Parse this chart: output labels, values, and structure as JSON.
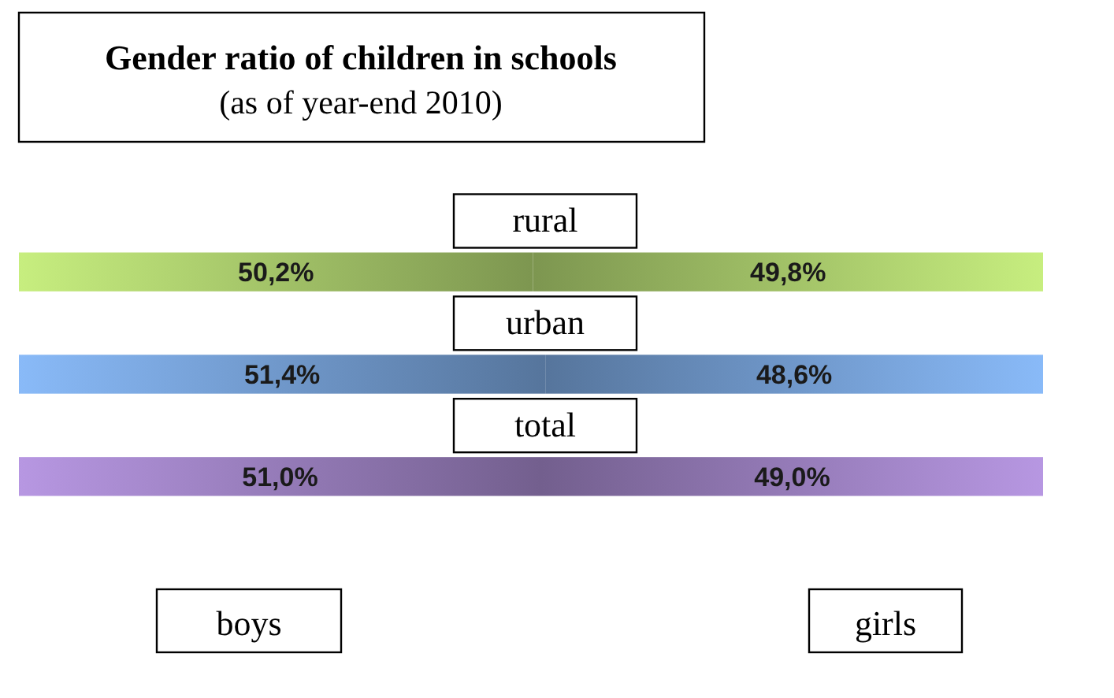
{
  "chart_data": {
    "type": "bar",
    "orientation": "horizontal",
    "title": "Gender ratio of children in schools",
    "subtitle": "(as of year-end 2010)",
    "categories": [
      "rural",
      "urban",
      "total"
    ],
    "xlim": [
      0,
      100
    ],
    "stacked": true,
    "tick_labels": false,
    "legend": "bottom",
    "series": [
      {
        "name": "boys",
        "colors": [
          "#7d9650",
          "#56759c",
          "#735f8e"
        ],
        "values": [
          50.2,
          51.4,
          51.0
        ],
        "value_labels": [
          "50,2%",
          "51,4%",
          "51,0%"
        ]
      },
      {
        "name": "girls",
        "colors": [
          "#7d9650",
          "#56759c",
          "#735f8e"
        ],
        "values": [
          49.8,
          48.6,
          49.0
        ],
        "value_labels": [
          "49,8%",
          "48,6%",
          "49,0%"
        ]
      }
    ]
  }
}
